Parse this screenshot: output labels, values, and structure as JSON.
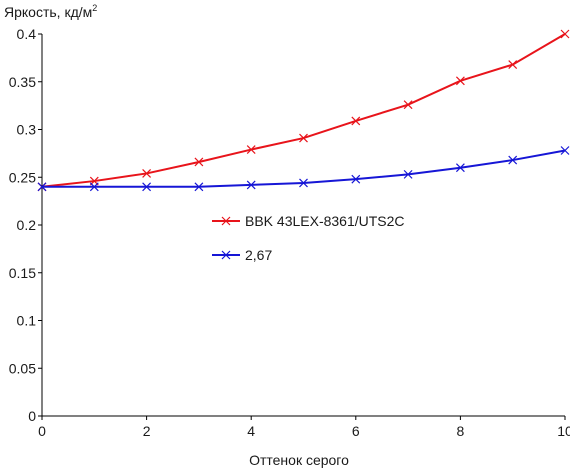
{
  "chart_data": {
    "type": "line",
    "ylabel": "Яркость, кд/м",
    "ylabel_sup": "2",
    "xlabel": "Оттенок серого",
    "xlim": [
      0,
      10
    ],
    "ylim": [
      0,
      0.4
    ],
    "x_ticks": [
      0,
      2,
      4,
      6,
      8,
      10
    ],
    "y_ticks": [
      0,
      0.05,
      0.1,
      0.15,
      0.2,
      0.25,
      0.3,
      0.35,
      0.4
    ],
    "y_tick_labels": [
      "0",
      "0.05",
      "0.1",
      "0.15",
      "0.2",
      "0.25",
      "0.3",
      "0.35",
      "0.4"
    ],
    "grid": false,
    "legend_position": "center",
    "x": [
      0,
      1,
      2,
      3,
      4,
      5,
      6,
      7,
      8,
      9,
      10
    ],
    "series": [
      {
        "name": "BBK 43LEX-8361/UTS2C",
        "color": "#e8141b",
        "marker": "x",
        "values": [
          0.24,
          0.246,
          0.254,
          0.266,
          0.279,
          0.291,
          0.309,
          0.326,
          0.351,
          0.368,
          0.4
        ]
      },
      {
        "name": "2,67",
        "color": "#1616d6",
        "marker": "x",
        "values": [
          0.24,
          0.24,
          0.24,
          0.24,
          0.242,
          0.244,
          0.248,
          0.253,
          0.26,
          0.268,
          0.278
        ]
      }
    ]
  }
}
